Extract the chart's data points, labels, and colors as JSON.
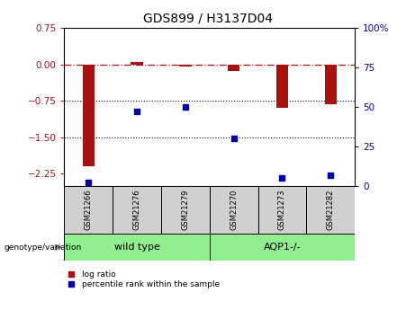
{
  "title": "GDS899 / H3137D04",
  "samples": [
    "GSM21266",
    "GSM21276",
    "GSM21279",
    "GSM21270",
    "GSM21273",
    "GSM21282"
  ],
  "log_ratio": [
    -2.1,
    0.04,
    -0.05,
    -0.13,
    -0.9,
    -0.82
  ],
  "percentile_rank": [
    2,
    47,
    50,
    30,
    5,
    7
  ],
  "ylim_left": [
    -2.5,
    0.75
  ],
  "ylim_right": [
    0,
    100
  ],
  "yticks_left": [
    0.75,
    0,
    -0.75,
    -1.5,
    -2.25
  ],
  "yticks_right": [
    100,
    75,
    50,
    25,
    0
  ],
  "hlines": [
    -0.75,
    -1.5
  ],
  "hline_zero": 0,
  "bar_color": "#AA1111",
  "dot_color": "#0000AA",
  "bar_width": 0.25,
  "genotype_label": "genotype/variation",
  "legend_log_ratio": "log ratio",
  "legend_percentile": "percentile rank within the sample",
  "background_color": "#ffffff",
  "plot_bg_color": "#ffffff",
  "tick_label_color_left": "#AA1111",
  "tick_label_color_right": "#0000AA",
  "sample_box_color": "#D0D0D0",
  "group_box_color": "#90EE90",
  "arrow_color": "#888888"
}
